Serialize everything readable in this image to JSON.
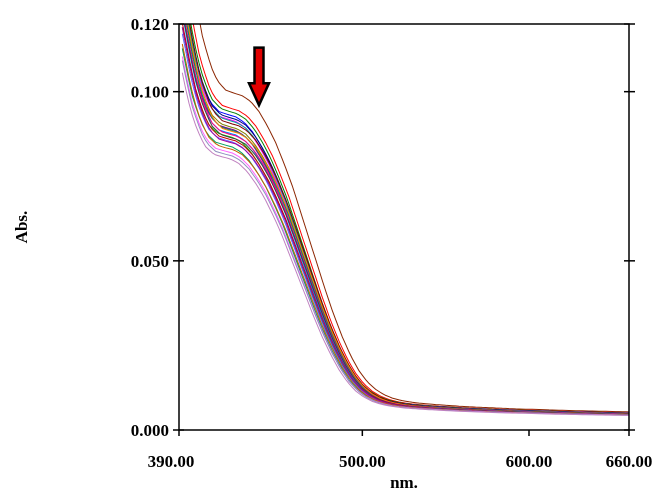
{
  "chart_data": {
    "type": "line",
    "title": "",
    "xlabel": "nm.",
    "ylabel": "Abs.",
    "xlim": [
      390.0,
      660.0
    ],
    "ylim": [
      0.0,
      0.12
    ],
    "grid": false,
    "legend": "none",
    "x_ticks": [
      {
        "value": 390.0,
        "label": "390.00"
      },
      {
        "value": 500.0,
        "label": "500.00"
      },
      {
        "value": 600.0,
        "label": "600.00"
      },
      {
        "value": 660.0,
        "label": "660.00"
      }
    ],
    "y_ticks": [
      {
        "value": 0.0,
        "label": "0.000"
      },
      {
        "value": 0.05,
        "label": "0.050"
      },
      {
        "value": 0.1,
        "label": "0.100"
      },
      {
        "value": 0.12,
        "label": "0.120"
      }
    ],
    "annotation": {
      "type": "arrow",
      "direction": "down",
      "x": 438,
      "y_top": 0.113,
      "y_bottom": 0.096,
      "color": "#e00000"
    },
    "base_curve": {
      "x": [
        392,
        395,
        398,
        401,
        404,
        407,
        410,
        415,
        420,
        425,
        430,
        435,
        440,
        445,
        450,
        455,
        460,
        465,
        470,
        475,
        480,
        485,
        490,
        495,
        500,
        505,
        510,
        515,
        520,
        525,
        530,
        540,
        550,
        560,
        570,
        580,
        590,
        600,
        620,
        640,
        660
      ],
      "y": [
        0.128,
        0.12,
        0.112,
        0.105,
        0.1,
        0.096,
        0.093,
        0.0905,
        0.0897,
        0.089,
        0.0875,
        0.0848,
        0.081,
        0.0765,
        0.071,
        0.065,
        0.058,
        0.051,
        0.044,
        0.037,
        0.0305,
        0.0248,
        0.0198,
        0.0158,
        0.0128,
        0.0108,
        0.0094,
        0.0085,
        0.0079,
        0.0075,
        0.0072,
        0.0068,
        0.0065,
        0.0062,
        0.006,
        0.0058,
        0.0056,
        0.0055,
        0.0052,
        0.005,
        0.0048
      ]
    },
    "series": [
      {
        "color": "#8b2500",
        "scale": 1.11,
        "shift": 3
      },
      {
        "color": "#ff0000",
        "scale": 1.06,
        "shift": 1
      },
      {
        "color": "#008000",
        "scale": 1.05,
        "shift": 0
      },
      {
        "color": "#0000ff",
        "scale": 1.04,
        "shift": -1
      },
      {
        "color": "#000080",
        "scale": 1.03,
        "shift": 0
      },
      {
        "color": "#ff00ff",
        "scale": 1.025,
        "shift": -1
      },
      {
        "color": "#00a0a0",
        "scale": 1.02,
        "shift": 0
      },
      {
        "color": "#800000",
        "scale": 1.01,
        "shift": 1
      },
      {
        "color": "#808000",
        "scale": 1.0,
        "shift": 0
      },
      {
        "color": "#800080",
        "scale": 0.995,
        "shift": -1
      },
      {
        "color": "#008080",
        "scale": 0.99,
        "shift": 0
      },
      {
        "color": "#ff8000",
        "scale": 0.985,
        "shift": 1
      },
      {
        "color": "#0080ff",
        "scale": 0.98,
        "shift": -1
      },
      {
        "color": "#ff0080",
        "scale": 0.975,
        "shift": 0
      },
      {
        "color": "#00c000",
        "scale": 0.97,
        "shift": -2
      },
      {
        "color": "#404040",
        "scale": 0.965,
        "shift": 0
      },
      {
        "color": "#c00000",
        "scale": 0.96,
        "shift": -1
      },
      {
        "color": "#6060ff",
        "scale": 0.955,
        "shift": -2
      },
      {
        "color": "#a000a0",
        "scale": 0.95,
        "shift": -1
      },
      {
        "color": "#00a060",
        "scale": 0.94,
        "shift": -3
      },
      {
        "color": "#c06000",
        "scale": 0.93,
        "shift": -2
      },
      {
        "color": "#ff60ff",
        "scale": 0.92,
        "shift": -3
      },
      {
        "color": "#9090c0",
        "scale": 0.91,
        "shift": -3
      },
      {
        "color": "#c080c0",
        "scale": 0.9,
        "shift": -4
      }
    ]
  }
}
